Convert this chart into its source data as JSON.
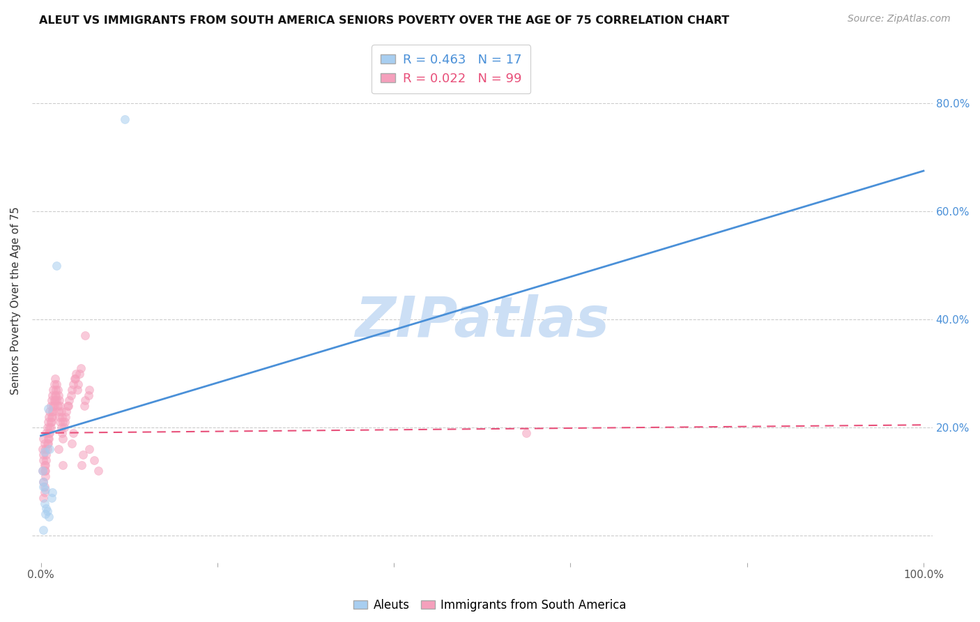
{
  "title": "ALEUT VS IMMIGRANTS FROM SOUTH AMERICA SENIORS POVERTY OVER THE AGE OF 75 CORRELATION CHART",
  "source": "Source: ZipAtlas.com",
  "ylabel": "Seniors Poverty Over the Age of 75",
  "aleut_R": 0.463,
  "aleut_N": 17,
  "sa_R": 0.022,
  "sa_N": 99,
  "aleut_color": "#a8cef0",
  "sa_color": "#f5a0bc",
  "trendline_aleut_color": "#4a90d8",
  "trendline_sa_color": "#e8507a",
  "watermark_color": "#ccdff5",
  "aleut_points_x": [
    0.004,
    0.01,
    0.008,
    0.012,
    0.003,
    0.005,
    0.006,
    0.002,
    0.003,
    0.004,
    0.007,
    0.018,
    0.009,
    0.095,
    0.005,
    0.003,
    0.013
  ],
  "aleut_points_y": [
    0.155,
    0.16,
    0.235,
    0.07,
    0.1,
    0.085,
    0.05,
    0.12,
    0.09,
    0.06,
    0.045,
    0.5,
    0.035,
    0.77,
    0.04,
    0.01,
    0.08
  ],
  "sa_points_x": [
    0.002,
    0.003,
    0.004,
    0.002,
    0.003,
    0.004,
    0.003,
    0.005,
    0.004,
    0.003,
    0.004,
    0.003,
    0.005,
    0.004,
    0.005,
    0.006,
    0.005,
    0.006,
    0.007,
    0.006,
    0.007,
    0.008,
    0.007,
    0.008,
    0.009,
    0.008,
    0.009,
    0.01,
    0.009,
    0.01,
    0.011,
    0.01,
    0.011,
    0.012,
    0.011,
    0.012,
    0.013,
    0.012,
    0.013,
    0.014,
    0.013,
    0.014,
    0.015,
    0.014,
    0.015,
    0.016,
    0.015,
    0.016,
    0.017,
    0.016,
    0.018,
    0.017,
    0.019,
    0.018,
    0.02,
    0.019,
    0.021,
    0.02,
    0.022,
    0.021,
    0.023,
    0.022,
    0.024,
    0.023,
    0.025,
    0.024,
    0.026,
    0.025,
    0.028,
    0.027,
    0.03,
    0.029,
    0.032,
    0.031,
    0.035,
    0.034,
    0.038,
    0.037,
    0.04,
    0.039,
    0.042,
    0.041,
    0.045,
    0.044,
    0.05,
    0.049,
    0.055,
    0.054,
    0.06,
    0.055,
    0.065,
    0.05,
    0.048,
    0.046,
    0.037,
    0.035,
    0.025,
    0.02,
    0.55
  ],
  "sa_points_y": [
    0.16,
    0.14,
    0.13,
    0.12,
    0.1,
    0.08,
    0.15,
    0.11,
    0.09,
    0.07,
    0.17,
    0.18,
    0.13,
    0.12,
    0.16,
    0.14,
    0.12,
    0.19,
    0.17,
    0.15,
    0.2,
    0.18,
    0.16,
    0.21,
    0.19,
    0.17,
    0.22,
    0.2,
    0.18,
    0.23,
    0.21,
    0.19,
    0.24,
    0.22,
    0.2,
    0.25,
    0.23,
    0.21,
    0.26,
    0.24,
    0.22,
    0.27,
    0.25,
    0.23,
    0.28,
    0.26,
    0.24,
    0.29,
    0.27,
    0.25,
    0.28,
    0.26,
    0.27,
    0.25,
    0.26,
    0.24,
    0.25,
    0.23,
    0.24,
    0.22,
    0.23,
    0.21,
    0.22,
    0.2,
    0.21,
    0.19,
    0.2,
    0.18,
    0.22,
    0.21,
    0.24,
    0.23,
    0.25,
    0.24,
    0.27,
    0.26,
    0.29,
    0.28,
    0.3,
    0.29,
    0.28,
    0.27,
    0.31,
    0.3,
    0.25,
    0.24,
    0.27,
    0.26,
    0.14,
    0.16,
    0.12,
    0.37,
    0.15,
    0.13,
    0.19,
    0.17,
    0.13,
    0.16,
    0.19
  ],
  "trendline_blue_x0": 0.0,
  "trendline_blue_y0": 0.185,
  "trendline_blue_x1": 1.0,
  "trendline_blue_y1": 0.675,
  "trendline_pink_x0": 0.0,
  "trendline_pink_y0": 0.19,
  "trendline_pink_x1": 1.0,
  "trendline_pink_y1": 0.205,
  "xlim": [
    -0.01,
    1.01
  ],
  "ylim": [
    -0.05,
    0.92
  ],
  "ytick_positions": [
    0.0,
    0.2,
    0.4,
    0.6,
    0.8
  ],
  "right_yticklabels": [
    "",
    "20.0%",
    "40.0%",
    "60.0%",
    "80.0%"
  ],
  "xtick_positions": [
    0.0,
    0.2,
    0.4,
    0.6,
    0.8,
    1.0
  ],
  "xticklabel_left": "0.0%",
  "xticklabel_right": "100.0%",
  "grid_color": "#cccccc",
  "background_color": "#ffffff",
  "marker_size": 75,
  "marker_alpha": 0.55,
  "title_fontsize": 11.5,
  "source_fontsize": 10,
  "ylabel_fontsize": 11,
  "tick_fontsize": 11,
  "right_tick_color": "#4a90d8"
}
